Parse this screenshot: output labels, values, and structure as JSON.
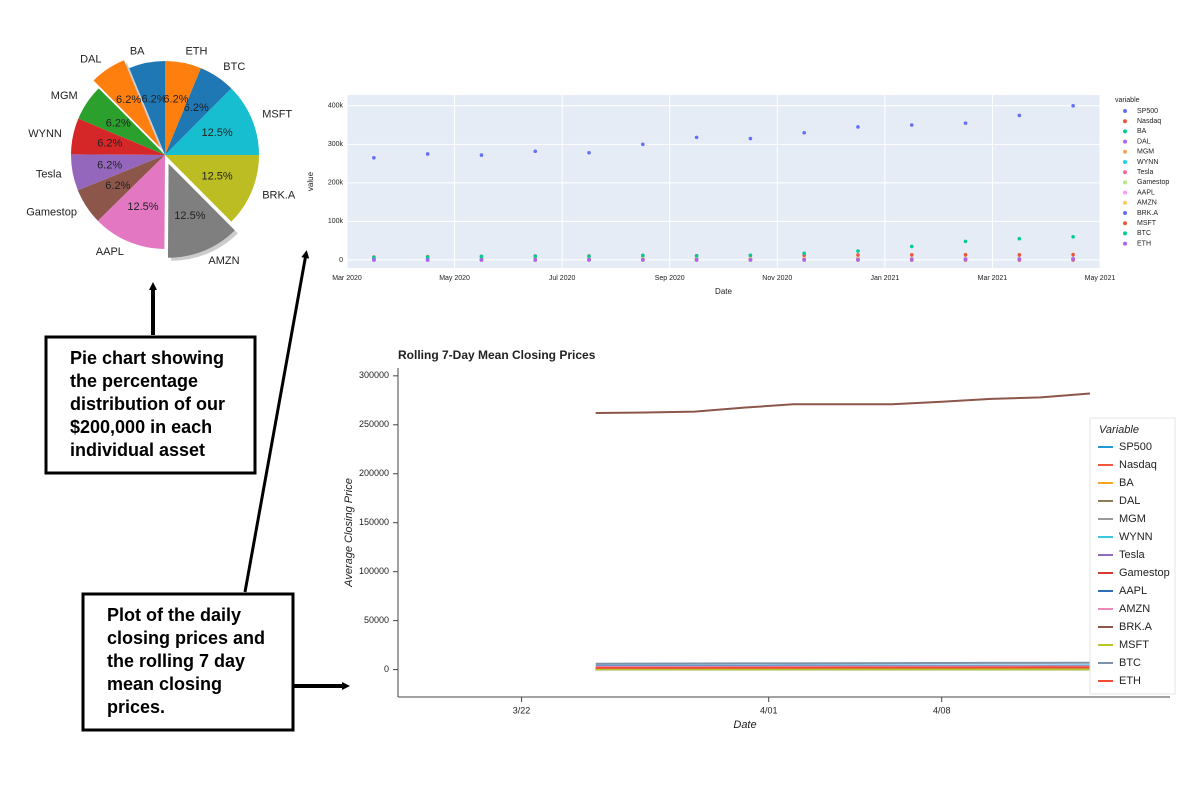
{
  "chart_data": [
    {
      "type": "pie",
      "categories": [
        "BA",
        "DAL",
        "MGM",
        "WYNN",
        "Tesla",
        "Gamestop",
        "AAPL",
        "AMZN",
        "BRK.A",
        "MSFT",
        "BTC",
        "ETH"
      ],
      "values": [
        6.2,
        6.2,
        6.2,
        6.2,
        6.2,
        6.2,
        12.5,
        12.5,
        12.5,
        12.5,
        6.2,
        6.2
      ],
      "value_labels": [
        "6.2%",
        "6.2%",
        "6.2%",
        "6.2%",
        "6.2%",
        "6.2%",
        "12.5%",
        "12.5%",
        "12.5%",
        "12.5%",
        "6.2%",
        "6.2%"
      ],
      "colors": [
        "#1f77b4",
        "#ff7f0e",
        "#2ca02c",
        "#d62728",
        "#9467bd",
        "#8c564b",
        "#e377c2",
        "#7f7f7f",
        "#bcbd22",
        "#17becf",
        "#1f77b4",
        "#ff7f0e"
      ],
      "explode": [
        0,
        0.1,
        0,
        0,
        0,
        0,
        0,
        0.1,
        0,
        0,
        0,
        0
      ]
    },
    {
      "type": "scatter",
      "x_label": "Date",
      "y_label": "value",
      "legend_title": "variable",
      "grid": true,
      "x": [
        "2020-03",
        "2020-04",
        "2020-05",
        "2020-06",
        "2020-07",
        "2020-08",
        "2020-09",
        "2020-10",
        "2020-11",
        "2020-12",
        "2021-01",
        "2021-02",
        "2021-03",
        "2021-04"
      ],
      "xlim": [
        "2020-03",
        "2021-05"
      ],
      "xticks": [
        {
          "value": "2020-03",
          "label": "Mar 2020"
        },
        {
          "value": "2020-05",
          "label": "May 2020"
        },
        {
          "value": "2020-07",
          "label": "Jul 2020"
        },
        {
          "value": "2020-09",
          "label": "Sep 2020"
        },
        {
          "value": "2020-11",
          "label": "Nov 2020"
        },
        {
          "value": "2021-01",
          "label": "Jan 2021"
        },
        {
          "value": "2021-03",
          "label": "Mar 2021"
        },
        {
          "value": "2021-05",
          "label": "May 2021"
        }
      ],
      "ylim": [
        -21000,
        428000
      ],
      "yticks": [
        0,
        {
          "value": 100000,
          "label": "100k"
        },
        {
          "value": 200000,
          "label": "200k"
        },
        {
          "value": 300000,
          "label": "300k"
        },
        {
          "value": 400000,
          "label": "400k"
        }
      ],
      "series": [
        {
          "name": "SP500",
          "color": "#636efa",
          "values": [
            2500,
            2800,
            2950,
            3100,
            3200,
            3400,
            3350,
            3300,
            3550,
            3700,
            3750,
            3850,
            3950,
            4150
          ]
        },
        {
          "name": "Nasdaq",
          "color": "#EF553B",
          "values": [
            7500,
            8500,
            9500,
            10000,
            10500,
            11500,
            11000,
            11500,
            12000,
            12800,
            13200,
            13500,
            13200,
            14000
          ]
        },
        {
          "name": "BA",
          "color": "#00cc96",
          "values": [
            130,
            150,
            130,
            175,
            160,
            175,
            160,
            150,
            200,
            215,
            200,
            215,
            250,
            240
          ]
        },
        {
          "name": "DAL",
          "color": "#ab63fa",
          "values": [
            25,
            25,
            23,
            28,
            26,
            30,
            31,
            31,
            38,
            40,
            40,
            46,
            48,
            46
          ]
        },
        {
          "name": "MGM",
          "color": "#FFA15A",
          "values": [
            12,
            13,
            14,
            16,
            14,
            18,
            21,
            22,
            27,
            31,
            28,
            35,
            38,
            40
          ]
        },
        {
          "name": "WYNN",
          "color": "#19d3f3",
          "values": [
            70,
            75,
            80,
            80,
            70,
            85,
            75,
            75,
            100,
            110,
            105,
            125,
            130,
            130
          ]
        },
        {
          "name": "Tesla",
          "color": "#FF6692",
          "values": [
            100,
            150,
            160,
            200,
            300,
            450,
            420,
            420,
            500,
            650,
            800,
            700,
            650,
            700
          ]
        },
        {
          "name": "Gamestop",
          "color": "#B6E880",
          "values": [
            4,
            5,
            5,
            5,
            4,
            5,
            10,
            12,
            12,
            18,
            200,
            60,
            200,
            170
          ]
        },
        {
          "name": "AAPL",
          "color": "#FF97FF",
          "values": [
            65,
            70,
            78,
            88,
            95,
            125,
            115,
            115,
            118,
            130,
            135,
            125,
            122,
            132
          ]
        },
        {
          "name": "AMZN",
          "color": "#FECB52",
          "values": [
            1900,
            2300,
            2450,
            2750,
            3100,
            3300,
            3150,
            3200,
            3100,
            3250,
            3300,
            3200,
            3100,
            3350
          ]
        },
        {
          "name": "BRK.A",
          "color": "#636efa",
          "values": [
            265000,
            275000,
            272000,
            282000,
            278000,
            300000,
            318000,
            315000,
            330000,
            345000,
            350000,
            355000,
            375000,
            400000
          ]
        },
        {
          "name": "MSFT",
          "color": "#EF553B",
          "values": [
            150,
            170,
            180,
            195,
            205,
            215,
            205,
            210,
            215,
            220,
            235,
            240,
            235,
            255
          ]
        },
        {
          "name": "BTC",
          "color": "#00cc96",
          "values": [
            6000,
            7000,
            9000,
            9500,
            9500,
            11500,
            10500,
            12000,
            17000,
            23000,
            35000,
            48000,
            55000,
            60000
          ]
        },
        {
          "name": "ETH",
          "color": "#ab63fa",
          "values": [
            130,
            190,
            210,
            230,
            240,
            400,
            360,
            380,
            550,
            650,
            1300,
            1700,
            1800,
            2300
          ]
        }
      ]
    },
    {
      "type": "line",
      "title": "Rolling 7-Day Mean Closing Prices",
      "x_label": "Date",
      "y_label": "Average Closing Price",
      "legend_title": "Variable",
      "x": [
        "3/25",
        "3/27",
        "3/29",
        "3/31",
        "4/02",
        "4/04",
        "4/06",
        "4/08",
        "4/10",
        "4/12",
        "4/14"
      ],
      "xlim": [
        "3/17",
        "4/14"
      ],
      "xticks": [
        "3/22",
        "4/01",
        "4/08"
      ],
      "ylim": [
        -28000,
        308000
      ],
      "yticks": [
        0,
        50000,
        100000,
        150000,
        200000,
        250000,
        300000
      ],
      "series": [
        {
          "name": "SP500",
          "color": "#1f9bd1",
          "values": [
            3920,
            3940,
            3950,
            3970,
            3990,
            4010,
            4030,
            4060,
            4080,
            4100,
            4120
          ]
        },
        {
          "name": "Nasdaq",
          "color": "#f4583a",
          "values": [
            1310,
            1315,
            1320,
            1325,
            1330,
            1340,
            1350,
            1360,
            1370,
            1380,
            1390
          ]
        },
        {
          "name": "BA",
          "color": "#f5a623",
          "values": [
            250,
            251,
            250,
            249,
            248,
            247,
            246,
            246,
            245,
            244,
            244
          ]
        },
        {
          "name": "DAL",
          "color": "#8b7d55",
          "values": [
            48,
            48,
            48,
            48,
            48,
            48,
            48,
            47,
            47,
            47,
            47
          ]
        },
        {
          "name": "MGM",
          "color": "#9a9a9a",
          "values": [
            37,
            37,
            38,
            38,
            38,
            38,
            39,
            39,
            39,
            40,
            40
          ]
        },
        {
          "name": "WYNN",
          "color": "#3cc6e0",
          "values": [
            127,
            128,
            128,
            129,
            129,
            130,
            130,
            131,
            131,
            131,
            132
          ]
        },
        {
          "name": "Tesla",
          "color": "#8e6cbf",
          "values": [
            660,
            655,
            650,
            645,
            650,
            660,
            670,
            680,
            690,
            700,
            710
          ]
        },
        {
          "name": "Gamestop",
          "color": "#d63a2f",
          "values": [
            185,
            183,
            180,
            178,
            180,
            182,
            180,
            175,
            172,
            170,
            168
          ]
        },
        {
          "name": "AAPL",
          "color": "#2e6fb0",
          "values": [
            121,
            121,
            121,
            122,
            122,
            123,
            124,
            125,
            127,
            128,
            129
          ]
        },
        {
          "name": "AMZN",
          "color": "#e88bb8",
          "values": [
            3080,
            3075,
            3070,
            3080,
            3090,
            3110,
            3140,
            3170,
            3200,
            3230,
            3260
          ]
        },
        {
          "name": "BRK.A",
          "color": "#8c564b",
          "values": [
            262000,
            262500,
            263500,
            267500,
            271000,
            271000,
            271000,
            273500,
            276500,
            278000,
            282000
          ]
        },
        {
          "name": "MSFT",
          "color": "#b8c62a",
          "values": [
            233,
            234,
            235,
            236,
            238,
            240,
            242,
            245,
            248,
            251,
            254
          ]
        },
        {
          "name": "BTC",
          "color": "#7d92a8",
          "values": [
            6000,
            6100,
            6200,
            6300,
            6400,
            6500,
            6600,
            6700,
            6800,
            6900,
            7000
          ]
        },
        {
          "name": "ETH",
          "color": "#ef4b35",
          "values": [
            1700,
            1750,
            1800,
            1850,
            1900,
            1950,
            2000,
            2050,
            2100,
            2200,
            2300
          ]
        }
      ]
    }
  ],
  "callouts": [
    {
      "lines": [
        "Pie chart showing",
        "the percentage",
        "distribution of our",
        "$200,000 in each",
        "individual asset"
      ]
    },
    {
      "lines": [
        "Plot of the daily",
        "closing prices and",
        "the rolling 7 day",
        "mean closing",
        "prices."
      ]
    }
  ]
}
